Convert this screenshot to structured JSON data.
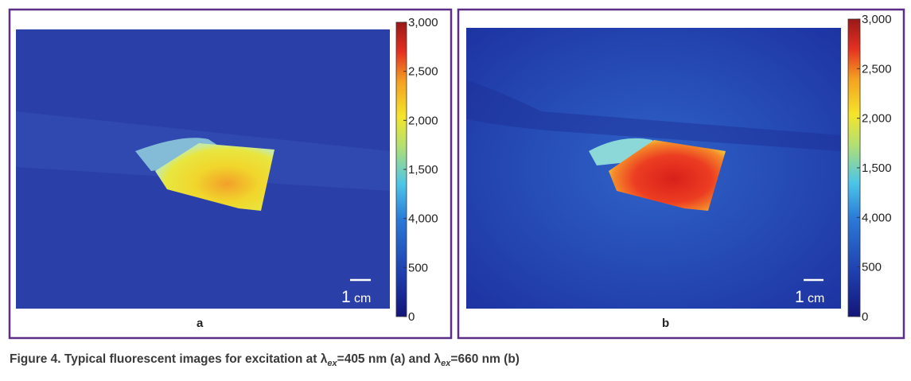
{
  "panels": [
    {
      "label": "a",
      "colorbar_labels": [
        "3,000",
        "2,500",
        "2,000",
        "1,500",
        "4,000",
        "500",
        "0"
      ],
      "scale_bar": {
        "number": "1",
        "unit": "cm"
      }
    },
    {
      "label": "b",
      "colorbar_labels": [
        "3,000",
        "2,500",
        "2,000",
        "1,500",
        "4,000",
        "500",
        "0"
      ],
      "scale_bar": {
        "number": "1",
        "unit": "cm"
      }
    }
  ],
  "caption": {
    "parts": [
      "Figure 4. Typical fluorescent images for excitation at λ",
      "ex",
      "=405 nm (a) and λ",
      "ex",
      "=660 nm (b)"
    ]
  }
}
